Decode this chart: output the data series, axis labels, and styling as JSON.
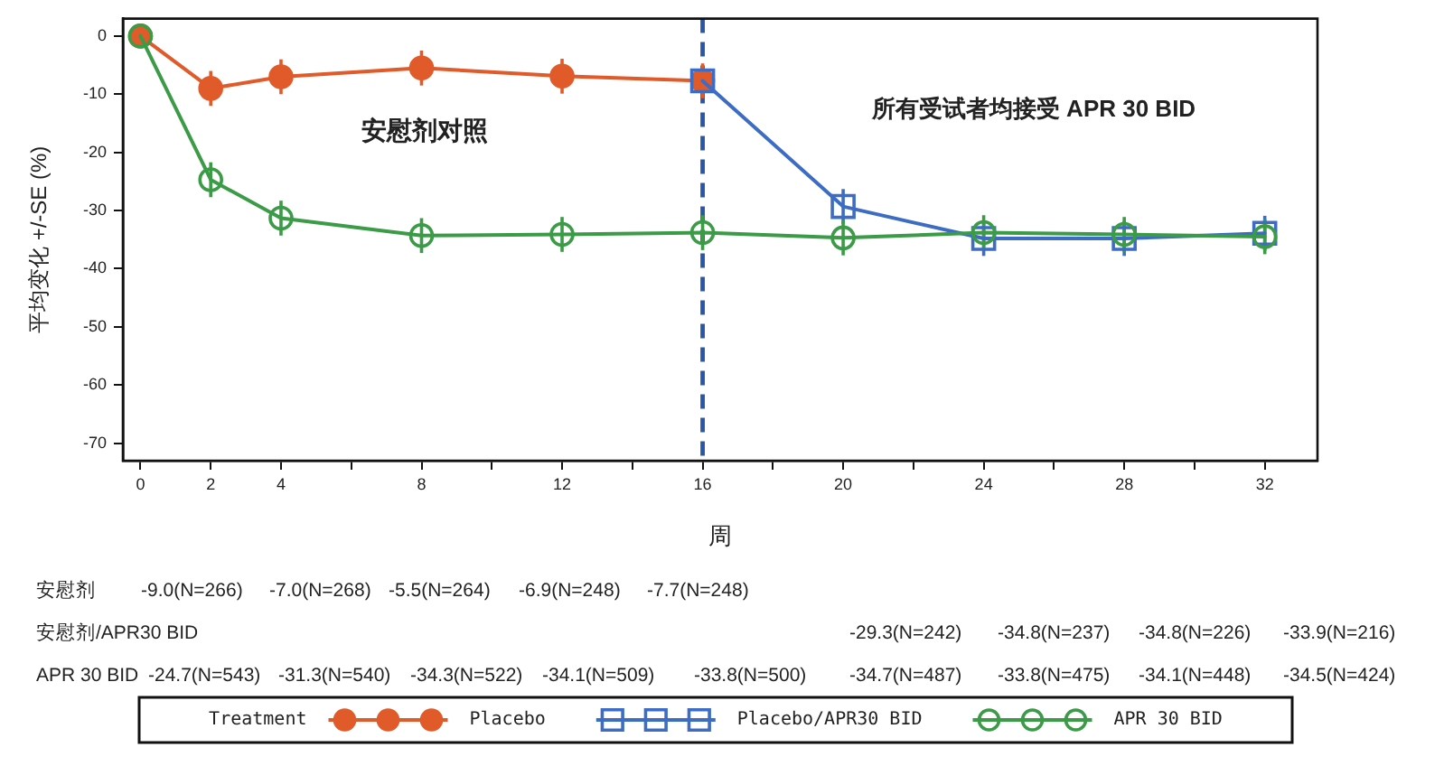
{
  "chart_data": {
    "type": "line",
    "xlabel": "周",
    "ylabel": "平均变化 +/-SE (%)",
    "legend_title": "Treatment",
    "annotations": [
      "安慰剂对照",
      "所有受试者均接受 APR 30 BID",
      "安慰剂",
      "-9.0(N=266)",
      "-7.0(N=268)",
      "-5.5(N=264)",
      "-6.9(N=248)",
      "-7.7(N=248)",
      "安慰剂/APR30 BID",
      "-29.3(N=242)",
      "-34.8(N=237)",
      "-34.8(N=226)",
      "-33.9(N=216)",
      "APR 30 BID",
      "-24.7(N=543)",
      "-31.3(N=540)",
      "-34.3(N=522)",
      "-34.1(N=509)",
      "-33.8(N=500)",
      "-34.7(N=487)",
      "-33.8(N=475)",
      "-34.1(N=448)",
      "-34.5(N=424)"
    ],
    "xlim": [
      -0.5,
      33.5
    ],
    "xticks": [
      0,
      2,
      4,
      {
        "value": 6,
        "label": null
      },
      8,
      {
        "value": 10,
        "label": null
      },
      12,
      {
        "value": 14,
        "label": null
      },
      16,
      {
        "value": 18,
        "label": null
      },
      20,
      {
        "value": 22,
        "label": null
      },
      24,
      {
        "value": 26,
        "label": null
      },
      28,
      {
        "value": 30,
        "label": null
      },
      32
    ],
    "ylim": [
      -73,
      3
    ],
    "yticks": [
      0,
      -10,
      -20,
      -30,
      -40,
      -50,
      -60,
      -70
    ],
    "ref_lines": [
      {
        "axis": "x",
        "value": 16,
        "color": "#2a56a6",
        "line_style": "dashed"
      }
    ],
    "series": [
      {
        "name": "Placebo",
        "color": "#e05a2a",
        "marker": "circle",
        "x": [
          0,
          2,
          4,
          8,
          12,
          16
        ],
        "values": [
          0,
          -9.0,
          -7.0,
          -5.5,
          -6.9,
          -7.7
        ],
        "errors": [
          null,
          3,
          3,
          3,
          3,
          3
        ]
      },
      {
        "name": "Placebo/APR30 BID",
        "color": "#3d6cc4",
        "marker": "square",
        "x": [
          16,
          20,
          24,
          28,
          32
        ],
        "values": [
          -7.7,
          -29.3,
          -34.8,
          -34.8,
          -33.9
        ],
        "errors": [
          null,
          3,
          3,
          3,
          3
        ]
      },
      {
        "name": "APR 30 BID",
        "color": "#3b9b46",
        "marker": "circle",
        "x": [
          0,
          2,
          4,
          8,
          12,
          16,
          20,
          24,
          28,
          32
        ],
        "values": [
          0,
          -24.7,
          -31.3,
          -34.3,
          -34.1,
          -33.8,
          -34.7,
          -33.8,
          -34.1,
          -34.5
        ],
        "errors": [
          null,
          3,
          3,
          3,
          3,
          3,
          3,
          3,
          3,
          3
        ]
      }
    ],
    "legend": "bottom",
    "grid": false,
    "line_style": "solid"
  }
}
